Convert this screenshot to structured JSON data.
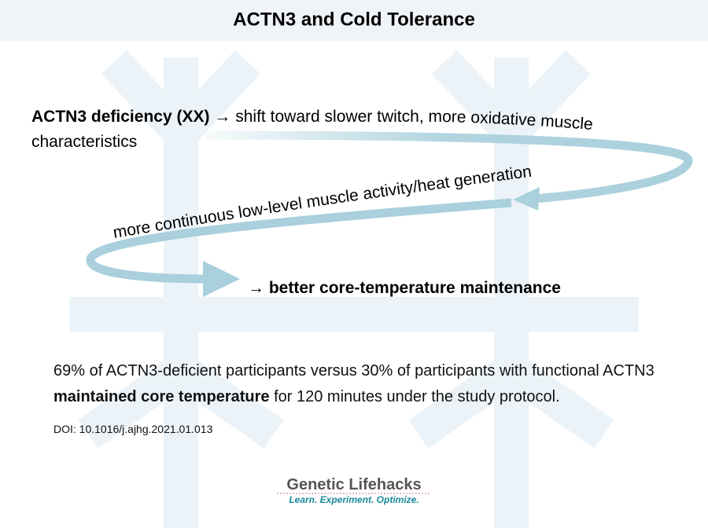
{
  "header": {
    "title": "ACTN3 and Cold Tolerance"
  },
  "flow": {
    "step1": {
      "bold": "ACTN3 deficiency (XX)",
      "text": " → shift toward slower twitch, more oxidative muscle",
      "continued": "characteristics"
    },
    "step2": {
      "text": "more continuous low-level muscle activity/heat generation"
    },
    "step3": {
      "text": "→ better core-temperature maintenance"
    }
  },
  "finding": {
    "part1": "69% of ACTN3-deficient participants versus 30% of participants with functional ACTN3 ",
    "bold": "maintained core temperature",
    "part2": " for 120 minutes under the study protocol."
  },
  "citation": {
    "doi": "DOI: 10.1016/j.ajhg.2021.01.013"
  },
  "logo": {
    "name": "Genetic Lifehacks",
    "tagline": "Learn. Experiment. Optimize."
  }
}
